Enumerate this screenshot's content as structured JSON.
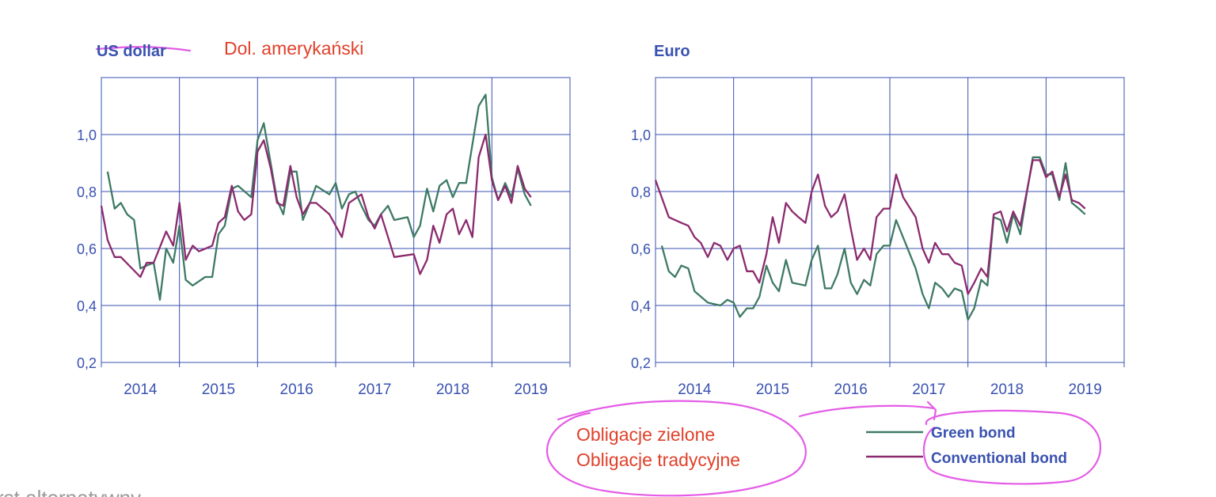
{
  "colors": {
    "axis": "#3a52b0",
    "grid": "#3a52b0",
    "green": "#3e7a64",
    "conventional": "#8b2a6e",
    "annotation_text": "#e0402a",
    "annotation_ink": "#e45ce6",
    "muted_text": "#9a9a9a"
  },
  "annotations": {
    "polish_title": "Dol. amerykański",
    "green_pl": "Obligacje zielone",
    "conventional_pl": "Obligacje tradycyjne",
    "cut_text": "rst alternatywny"
  },
  "legend": {
    "green": "Green bond",
    "conventional": "Conventional bond"
  },
  "chart_data": [
    {
      "type": "line",
      "title": "US dollar",
      "xlabel": "",
      "ylabel": "",
      "ylim": [
        0.2,
        1.2
      ],
      "yticks": [
        "0,2",
        "0,4",
        "0,6",
        "0,8",
        "1,0"
      ],
      "xticks": [
        "2014",
        "2015",
        "2016",
        "2017",
        "2018",
        "2019"
      ],
      "grid": true,
      "series": [
        {
          "name": "Green bond",
          "color": "#3e7a64",
          "points": [
            [
              2013.58,
              0.87
            ],
            [
              2013.67,
              0.74
            ],
            [
              2013.75,
              0.76
            ],
            [
              2013.83,
              0.72
            ],
            [
              2013.92,
              0.7
            ],
            [
              2014.0,
              0.53
            ],
            [
              2014.08,
              0.54
            ],
            [
              2014.17,
              0.55
            ],
            [
              2014.25,
              0.42
            ],
            [
              2014.33,
              0.6
            ],
            [
              2014.42,
              0.55
            ],
            [
              2014.5,
              0.68
            ],
            [
              2014.58,
              0.49
            ],
            [
              2014.67,
              0.47
            ],
            [
              2014.83,
              0.5
            ],
            [
              2014.92,
              0.5
            ],
            [
              2015.0,
              0.65
            ],
            [
              2015.08,
              0.68
            ],
            [
              2015.17,
              0.81
            ],
            [
              2015.25,
              0.82
            ],
            [
              2015.42,
              0.78
            ],
            [
              2015.5,
              0.98
            ],
            [
              2015.58,
              1.04
            ],
            [
              2015.75,
              0.77
            ],
            [
              2015.83,
              0.72
            ],
            [
              2015.92,
              0.87
            ],
            [
              2016.0,
              0.87
            ],
            [
              2016.08,
              0.7
            ],
            [
              2016.17,
              0.76
            ],
            [
              2016.25,
              0.82
            ],
            [
              2016.42,
              0.79
            ],
            [
              2016.5,
              0.83
            ],
            [
              2016.58,
              0.74
            ],
            [
              2016.67,
              0.79
            ],
            [
              2016.75,
              0.8
            ],
            [
              2016.83,
              0.75
            ],
            [
              2016.92,
              0.7
            ],
            [
              2017.0,
              0.68
            ],
            [
              2017.08,
              0.72
            ],
            [
              2017.17,
              0.75
            ],
            [
              2017.25,
              0.7
            ],
            [
              2017.42,
              0.71
            ],
            [
              2017.5,
              0.64
            ],
            [
              2017.58,
              0.68
            ],
            [
              2017.67,
              0.81
            ],
            [
              2017.75,
              0.73
            ],
            [
              2017.83,
              0.82
            ],
            [
              2017.92,
              0.84
            ],
            [
              2018.0,
              0.78
            ],
            [
              2018.08,
              0.83
            ],
            [
              2018.17,
              0.83
            ],
            [
              2018.33,
              1.1
            ],
            [
              2018.42,
              1.14
            ],
            [
              2018.5,
              0.85
            ],
            [
              2018.58,
              0.77
            ],
            [
              2018.67,
              0.83
            ],
            [
              2018.75,
              0.78
            ],
            [
              2018.83,
              0.88
            ],
            [
              2018.92,
              0.79
            ],
            [
              2019.0,
              0.75
            ]
          ]
        },
        {
          "name": "Conventional bond",
          "color": "#8b2a6e",
          "points": [
            [
              2013.5,
              0.75
            ],
            [
              2013.58,
              0.63
            ],
            [
              2013.67,
              0.57
            ],
            [
              2013.75,
              0.57
            ],
            [
              2014.0,
              0.5
            ],
            [
              2014.08,
              0.55
            ],
            [
              2014.17,
              0.55
            ],
            [
              2014.33,
              0.66
            ],
            [
              2014.42,
              0.61
            ],
            [
              2014.5,
              0.76
            ],
            [
              2014.58,
              0.56
            ],
            [
              2014.67,
              0.61
            ],
            [
              2014.75,
              0.59
            ],
            [
              2014.92,
              0.61
            ],
            [
              2015.0,
              0.69
            ],
            [
              2015.08,
              0.71
            ],
            [
              2015.17,
              0.82
            ],
            [
              2015.25,
              0.73
            ],
            [
              2015.33,
              0.7
            ],
            [
              2015.42,
              0.72
            ],
            [
              2015.5,
              0.94
            ],
            [
              2015.58,
              0.98
            ],
            [
              2015.67,
              0.88
            ],
            [
              2015.75,
              0.76
            ],
            [
              2015.83,
              0.75
            ],
            [
              2015.92,
              0.89
            ],
            [
              2016.0,
              0.78
            ],
            [
              2016.08,
              0.72
            ],
            [
              2016.17,
              0.76
            ],
            [
              2016.25,
              0.76
            ],
            [
              2016.42,
              0.72
            ],
            [
              2016.58,
              0.64
            ],
            [
              2016.67,
              0.76
            ],
            [
              2016.83,
              0.79
            ],
            [
              2016.92,
              0.71
            ],
            [
              2017.0,
              0.67
            ],
            [
              2017.08,
              0.72
            ],
            [
              2017.25,
              0.57
            ],
            [
              2017.5,
              0.58
            ],
            [
              2017.58,
              0.51
            ],
            [
              2017.67,
              0.56
            ],
            [
              2017.75,
              0.68
            ],
            [
              2017.83,
              0.62
            ],
            [
              2017.92,
              0.72
            ],
            [
              2018.0,
              0.74
            ],
            [
              2018.08,
              0.65
            ],
            [
              2018.17,
              0.7
            ],
            [
              2018.25,
              0.64
            ],
            [
              2018.33,
              0.92
            ],
            [
              2018.42,
              1.0
            ],
            [
              2018.5,
              0.84
            ],
            [
              2018.58,
              0.77
            ],
            [
              2018.67,
              0.82
            ],
            [
              2018.75,
              0.76
            ],
            [
              2018.83,
              0.89
            ],
            [
              2018.92,
              0.81
            ],
            [
              2019.0,
              0.78
            ]
          ]
        }
      ]
    },
    {
      "type": "line",
      "title": "Euro",
      "xlabel": "",
      "ylabel": "",
      "ylim": [
        0.2,
        1.2
      ],
      "yticks": [
        "0,2",
        "0,4",
        "0,6",
        "0,8",
        "1,0"
      ],
      "xticks": [
        "2014",
        "2015",
        "2016",
        "2017",
        "2018",
        "2019"
      ],
      "grid": true,
      "series": [
        {
          "name": "Green bond",
          "color": "#3e7a64",
          "points": [
            [
              2013.58,
              0.61
            ],
            [
              2013.67,
              0.52
            ],
            [
              2013.75,
              0.5
            ],
            [
              2013.83,
              0.54
            ],
            [
              2013.92,
              0.53
            ],
            [
              2014.0,
              0.45
            ],
            [
              2014.17,
              0.41
            ],
            [
              2014.33,
              0.4
            ],
            [
              2014.42,
              0.42
            ],
            [
              2014.5,
              0.41
            ],
            [
              2014.58,
              0.36
            ],
            [
              2014.67,
              0.39
            ],
            [
              2014.75,
              0.39
            ],
            [
              2014.83,
              0.43
            ],
            [
              2014.92,
              0.54
            ],
            [
              2015.0,
              0.48
            ],
            [
              2015.08,
              0.45
            ],
            [
              2015.17,
              0.56
            ],
            [
              2015.25,
              0.48
            ],
            [
              2015.42,
              0.47
            ],
            [
              2015.5,
              0.56
            ],
            [
              2015.58,
              0.61
            ],
            [
              2015.67,
              0.46
            ],
            [
              2015.75,
              0.46
            ],
            [
              2015.83,
              0.51
            ],
            [
              2015.92,
              0.6
            ],
            [
              2016.0,
              0.48
            ],
            [
              2016.08,
              0.44
            ],
            [
              2016.17,
              0.49
            ],
            [
              2016.25,
              0.47
            ],
            [
              2016.33,
              0.58
            ],
            [
              2016.42,
              0.61
            ],
            [
              2016.5,
              0.61
            ],
            [
              2016.58,
              0.7
            ],
            [
              2016.83,
              0.53
            ],
            [
              2016.92,
              0.44
            ],
            [
              2017.0,
              0.39
            ],
            [
              2017.08,
              0.48
            ],
            [
              2017.17,
              0.46
            ],
            [
              2017.25,
              0.43
            ],
            [
              2017.33,
              0.46
            ],
            [
              2017.42,
              0.45
            ],
            [
              2017.5,
              0.35
            ],
            [
              2017.58,
              0.39
            ],
            [
              2017.67,
              0.49
            ],
            [
              2017.75,
              0.47
            ],
            [
              2017.83,
              0.71
            ],
            [
              2017.92,
              0.7
            ],
            [
              2018.0,
              0.62
            ],
            [
              2018.08,
              0.72
            ],
            [
              2018.17,
              0.65
            ],
            [
              2018.25,
              0.79
            ],
            [
              2018.33,
              0.92
            ],
            [
              2018.42,
              0.92
            ],
            [
              2018.5,
              0.86
            ],
            [
              2018.58,
              0.86
            ],
            [
              2018.67,
              0.77
            ],
            [
              2018.75,
              0.9
            ],
            [
              2018.83,
              0.76
            ],
            [
              2018.92,
              0.74
            ],
            [
              2019.0,
              0.72
            ]
          ]
        },
        {
          "name": "Conventional bond",
          "color": "#8b2a6e",
          "points": [
            [
              2013.5,
              0.84
            ],
            [
              2013.67,
              0.71
            ],
            [
              2013.83,
              0.69
            ],
            [
              2013.92,
              0.68
            ],
            [
              2014.0,
              0.64
            ],
            [
              2014.08,
              0.62
            ],
            [
              2014.17,
              0.57
            ],
            [
              2014.25,
              0.62
            ],
            [
              2014.33,
              0.61
            ],
            [
              2014.42,
              0.56
            ],
            [
              2014.5,
              0.6
            ],
            [
              2014.58,
              0.61
            ],
            [
              2014.67,
              0.52
            ],
            [
              2014.75,
              0.52
            ],
            [
              2014.83,
              0.48
            ],
            [
              2014.92,
              0.58
            ],
            [
              2015.0,
              0.71
            ],
            [
              2015.08,
              0.62
            ],
            [
              2015.17,
              0.76
            ],
            [
              2015.25,
              0.73
            ],
            [
              2015.33,
              0.71
            ],
            [
              2015.42,
              0.69
            ],
            [
              2015.5,
              0.8
            ],
            [
              2015.58,
              0.86
            ],
            [
              2015.67,
              0.75
            ],
            [
              2015.75,
              0.71
            ],
            [
              2015.83,
              0.73
            ],
            [
              2015.92,
              0.79
            ],
            [
              2016.0,
              0.67
            ],
            [
              2016.08,
              0.56
            ],
            [
              2016.17,
              0.6
            ],
            [
              2016.25,
              0.56
            ],
            [
              2016.33,
              0.71
            ],
            [
              2016.42,
              0.74
            ],
            [
              2016.5,
              0.74
            ],
            [
              2016.58,
              0.86
            ],
            [
              2016.67,
              0.78
            ],
            [
              2016.83,
              0.71
            ],
            [
              2016.92,
              0.6
            ],
            [
              2017.0,
              0.55
            ],
            [
              2017.08,
              0.62
            ],
            [
              2017.17,
              0.58
            ],
            [
              2017.25,
              0.58
            ],
            [
              2017.33,
              0.55
            ],
            [
              2017.42,
              0.54
            ],
            [
              2017.5,
              0.44
            ],
            [
              2017.58,
              0.48
            ],
            [
              2017.67,
              0.53
            ],
            [
              2017.75,
              0.5
            ],
            [
              2017.83,
              0.72
            ],
            [
              2017.92,
              0.73
            ],
            [
              2018.0,
              0.66
            ],
            [
              2018.08,
              0.73
            ],
            [
              2018.17,
              0.68
            ],
            [
              2018.33,
              0.91
            ],
            [
              2018.42,
              0.91
            ],
            [
              2018.5,
              0.85
            ],
            [
              2018.58,
              0.87
            ],
            [
              2018.67,
              0.78
            ],
            [
              2018.75,
              0.86
            ],
            [
              2018.83,
              0.77
            ],
            [
              2018.92,
              0.76
            ],
            [
              2019.0,
              0.74
            ]
          ]
        }
      ]
    }
  ]
}
